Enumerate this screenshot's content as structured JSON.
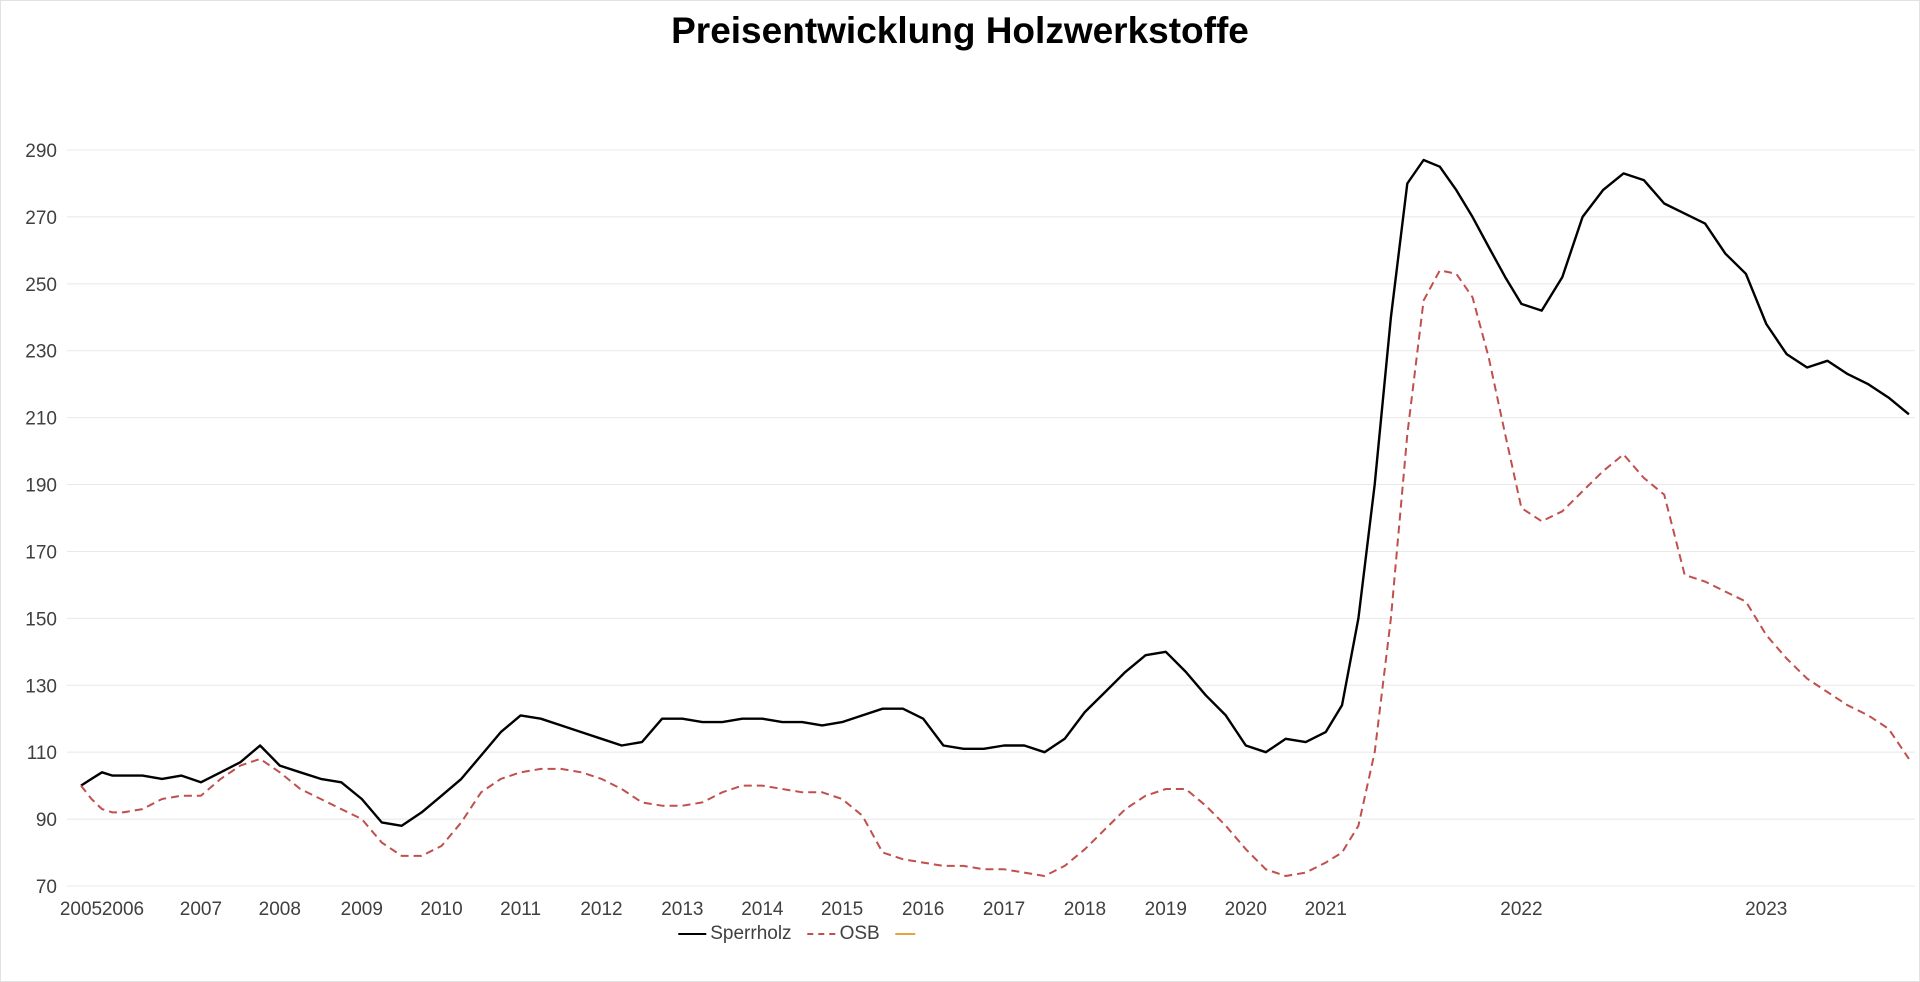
{
  "title": "Preisentwicklung Holzwerkstoffe",
  "chart_data": {
    "type": "line",
    "title": "Preisentwicklung Holzwerkstoffe",
    "xlabel": "",
    "ylabel": "",
    "y_axis": {
      "min": 70,
      "max": 290,
      "ticks": [
        70,
        90,
        110,
        130,
        150,
        170,
        190,
        210,
        230,
        250,
        270,
        290
      ],
      "grid": true
    },
    "x_axis": {
      "labels": [
        "2005",
        "2006",
        "2007",
        "2008",
        "2009",
        "2010",
        "2011",
        "2012",
        "2013",
        "2014",
        "2015",
        "2016",
        "2017",
        "2018",
        "2019",
        "2020",
        "2021",
        "2022",
        "2023"
      ],
      "anchors": [
        [
          2005,
          0.0
        ],
        [
          2006,
          0.0229
        ],
        [
          2007,
          0.0654
        ],
        [
          2008,
          0.1084
        ],
        [
          2009,
          0.1531
        ],
        [
          2010,
          0.1966
        ],
        [
          2011,
          0.2397
        ],
        [
          2012,
          0.2838
        ],
        [
          2013,
          0.3279
        ],
        [
          2014,
          0.3715
        ],
        [
          2015,
          0.415
        ],
        [
          2016,
          0.4592
        ],
        [
          2017,
          0.5033
        ],
        [
          2018,
          0.5474
        ],
        [
          2019,
          0.5915
        ],
        [
          2020,
          0.6351
        ],
        [
          2021,
          0.6787
        ],
        [
          2022,
          0.7854
        ],
        [
          2023,
          0.9189
        ],
        [
          2024,
          1.0523
        ]
      ]
    },
    "legend": [
      {
        "name": "Sperrholz",
        "color": "#000000",
        "style": "solid"
      },
      {
        "name": "OSB",
        "color": "#c0504d",
        "style": "dashed"
      },
      {
        "name": "",
        "color": "#e8a33d",
        "style": "solid"
      }
    ],
    "colors": {
      "grid": "#e8e8e8",
      "axis_text": "#404040",
      "sperrholz": "#000000",
      "osb": "#c0504d",
      "third_series": "#e8a33d"
    },
    "series": [
      {
        "name": "Sperrholz",
        "color": "#000000",
        "style": "solid",
        "points": [
          [
            2005.0,
            100
          ],
          [
            2005.25,
            102
          ],
          [
            2005.5,
            104
          ],
          [
            2005.75,
            103
          ],
          [
            2006.0,
            103
          ],
          [
            2006.25,
            103
          ],
          [
            2006.5,
            102
          ],
          [
            2006.75,
            103
          ],
          [
            2007.0,
            101
          ],
          [
            2007.25,
            104
          ],
          [
            2007.5,
            107
          ],
          [
            2007.75,
            112
          ],
          [
            2008.0,
            106
          ],
          [
            2008.25,
            104
          ],
          [
            2008.5,
            102
          ],
          [
            2008.75,
            101
          ],
          [
            2009.0,
            96
          ],
          [
            2009.25,
            89
          ],
          [
            2009.5,
            88
          ],
          [
            2009.75,
            92
          ],
          [
            2010.0,
            97
          ],
          [
            2010.25,
            102
          ],
          [
            2010.5,
            109
          ],
          [
            2010.75,
            116
          ],
          [
            2011.0,
            121
          ],
          [
            2011.25,
            120
          ],
          [
            2011.5,
            118
          ],
          [
            2011.75,
            116
          ],
          [
            2012.0,
            114
          ],
          [
            2012.25,
            112
          ],
          [
            2012.5,
            113
          ],
          [
            2012.75,
            120
          ],
          [
            2013.0,
            120
          ],
          [
            2013.25,
            119
          ],
          [
            2013.5,
            119
          ],
          [
            2013.75,
            120
          ],
          [
            2014.0,
            120
          ],
          [
            2014.25,
            119
          ],
          [
            2014.5,
            119
          ],
          [
            2014.75,
            118
          ],
          [
            2015.0,
            119
          ],
          [
            2015.25,
            121
          ],
          [
            2015.5,
            123
          ],
          [
            2015.75,
            123
          ],
          [
            2016.0,
            120
          ],
          [
            2016.25,
            112
          ],
          [
            2016.5,
            111
          ],
          [
            2016.75,
            111
          ],
          [
            2017.0,
            112
          ],
          [
            2017.25,
            112
          ],
          [
            2017.5,
            110
          ],
          [
            2017.75,
            114
          ],
          [
            2018.0,
            122
          ],
          [
            2018.25,
            128
          ],
          [
            2018.5,
            134
          ],
          [
            2018.75,
            139
          ],
          [
            2019.0,
            140
          ],
          [
            2019.25,
            134
          ],
          [
            2019.5,
            127
          ],
          [
            2019.75,
            121
          ],
          [
            2020.0,
            112
          ],
          [
            2020.25,
            110
          ],
          [
            2020.5,
            114
          ],
          [
            2020.75,
            113
          ],
          [
            2021.0,
            116
          ],
          [
            2021.083,
            124
          ],
          [
            2021.167,
            150
          ],
          [
            2021.25,
            190
          ],
          [
            2021.333,
            240
          ],
          [
            2021.417,
            280
          ],
          [
            2021.5,
            287
          ],
          [
            2021.583,
            285
          ],
          [
            2021.667,
            278
          ],
          [
            2021.75,
            270
          ],
          [
            2021.833,
            261
          ],
          [
            2021.917,
            252
          ],
          [
            2022.0,
            244
          ],
          [
            2022.083,
            242
          ],
          [
            2022.167,
            252
          ],
          [
            2022.25,
            270
          ],
          [
            2022.333,
            278
          ],
          [
            2022.417,
            283
          ],
          [
            2022.5,
            281
          ],
          [
            2022.583,
            274
          ],
          [
            2022.667,
            271
          ],
          [
            2022.75,
            268
          ],
          [
            2022.833,
            259
          ],
          [
            2022.917,
            253
          ],
          [
            2023.0,
            238
          ],
          [
            2023.083,
            229
          ],
          [
            2023.167,
            225
          ],
          [
            2023.25,
            227
          ],
          [
            2023.333,
            223
          ],
          [
            2023.417,
            220
          ],
          [
            2023.5,
            216
          ],
          [
            2023.583,
            211
          ]
        ]
      },
      {
        "name": "OSB",
        "color": "#c0504d",
        "style": "dashed",
        "points": [
          [
            2005.0,
            100
          ],
          [
            2005.25,
            96
          ],
          [
            2005.5,
            93
          ],
          [
            2005.75,
            92
          ],
          [
            2006.0,
            92
          ],
          [
            2006.25,
            93
          ],
          [
            2006.5,
            96
          ],
          [
            2006.75,
            97
          ],
          [
            2007.0,
            97
          ],
          [
            2007.25,
            102
          ],
          [
            2007.5,
            106
          ],
          [
            2007.75,
            108
          ],
          [
            2008.0,
            104
          ],
          [
            2008.25,
            99
          ],
          [
            2008.5,
            96
          ],
          [
            2008.75,
            93
          ],
          [
            2009.0,
            90
          ],
          [
            2009.25,
            83
          ],
          [
            2009.5,
            79
          ],
          [
            2009.75,
            79
          ],
          [
            2010.0,
            82
          ],
          [
            2010.25,
            89
          ],
          [
            2010.5,
            98
          ],
          [
            2010.75,
            102
          ],
          [
            2011.0,
            104
          ],
          [
            2011.25,
            105
          ],
          [
            2011.5,
            105
          ],
          [
            2011.75,
            104
          ],
          [
            2012.0,
            102
          ],
          [
            2012.25,
            99
          ],
          [
            2012.5,
            95
          ],
          [
            2012.75,
            94
          ],
          [
            2013.0,
            94
          ],
          [
            2013.25,
            95
          ],
          [
            2013.5,
            98
          ],
          [
            2013.75,
            100
          ],
          [
            2014.0,
            100
          ],
          [
            2014.25,
            99
          ],
          [
            2014.5,
            98
          ],
          [
            2014.75,
            98
          ],
          [
            2015.0,
            96
          ],
          [
            2015.25,
            91
          ],
          [
            2015.5,
            80
          ],
          [
            2015.75,
            78
          ],
          [
            2016.0,
            77
          ],
          [
            2016.25,
            76
          ],
          [
            2016.5,
            76
          ],
          [
            2016.75,
            75
          ],
          [
            2017.0,
            75
          ],
          [
            2017.25,
            74
          ],
          [
            2017.5,
            73
          ],
          [
            2017.75,
            76
          ],
          [
            2018.0,
            81
          ],
          [
            2018.25,
            87
          ],
          [
            2018.5,
            93
          ],
          [
            2018.75,
            97
          ],
          [
            2019.0,
            99
          ],
          [
            2019.25,
            99
          ],
          [
            2019.5,
            94
          ],
          [
            2019.75,
            88
          ],
          [
            2020.0,
            81
          ],
          [
            2020.25,
            75
          ],
          [
            2020.5,
            73
          ],
          [
            2020.75,
            74
          ],
          [
            2021.0,
            77
          ],
          [
            2021.083,
            80
          ],
          [
            2021.167,
            88
          ],
          [
            2021.25,
            110
          ],
          [
            2021.333,
            150
          ],
          [
            2021.417,
            205
          ],
          [
            2021.5,
            245
          ],
          [
            2021.583,
            254
          ],
          [
            2021.667,
            253
          ],
          [
            2021.75,
            246
          ],
          [
            2021.833,
            228
          ],
          [
            2021.917,
            205
          ],
          [
            2022.0,
            183
          ],
          [
            2022.083,
            179
          ],
          [
            2022.167,
            182
          ],
          [
            2022.25,
            188
          ],
          [
            2022.333,
            194
          ],
          [
            2022.417,
            199
          ],
          [
            2022.5,
            192
          ],
          [
            2022.583,
            187
          ],
          [
            2022.667,
            163
          ],
          [
            2022.75,
            161
          ],
          [
            2022.833,
            158
          ],
          [
            2022.917,
            155
          ],
          [
            2023.0,
            145
          ],
          [
            2023.083,
            138
          ],
          [
            2023.167,
            132
          ],
          [
            2023.25,
            128
          ],
          [
            2023.333,
            124
          ],
          [
            2023.417,
            121
          ],
          [
            2023.5,
            117
          ],
          [
            2023.583,
            108
          ]
        ]
      },
      {
        "name": "",
        "color": "#e8a33d",
        "style": "solid",
        "points": []
      }
    ]
  }
}
